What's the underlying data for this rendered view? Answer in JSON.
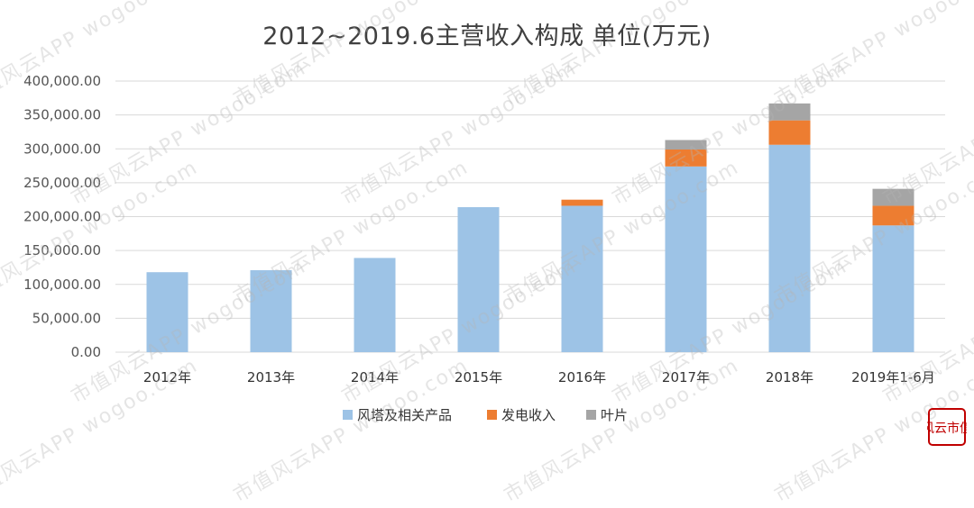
{
  "title": "2012~2019.6主营收入构成  单位(万元)",
  "colors": {
    "series_1": "#9dc3e6",
    "series_2": "#ed7d31",
    "series_3": "#a5a5a5",
    "grid": "#d9d9d9",
    "logo": "#c00000"
  },
  "watermark": "市值风云APP  wogoo.com",
  "logo_text": "风云市值",
  "chart_data": {
    "type": "bar",
    "stacked": true,
    "title": "2012~2019.6主营收入构成  单位(万元)",
    "categories": [
      "2012年",
      "2013年",
      "2014年",
      "2015年",
      "2016年",
      "2017年",
      "2018年",
      "2019年1-6月"
    ],
    "series": [
      {
        "name": "风塔及相关产品",
        "values": [
          118000,
          121000,
          139000,
          214000,
          216000,
          274000,
          306000,
          187000
        ]
      },
      {
        "name": "发电收入",
        "values": [
          0,
          0,
          0,
          0,
          9000,
          25000,
          36000,
          29000
        ]
      },
      {
        "name": "叶片",
        "values": [
          0,
          0,
          0,
          0,
          0,
          14000,
          25000,
          25000
        ]
      }
    ],
    "ylim": [
      0,
      400000
    ],
    "yticks": [
      "0.00",
      "50,000.00",
      "100,000.00",
      "150,000.00",
      "200,000.00",
      "250,000.00",
      "300,000.00",
      "350,000.00",
      "400,000.00"
    ],
    "ytick_values": [
      0,
      50000,
      100000,
      150000,
      200000,
      250000,
      300000,
      350000,
      400000
    ],
    "grid": true,
    "legend_position": "bottom"
  }
}
